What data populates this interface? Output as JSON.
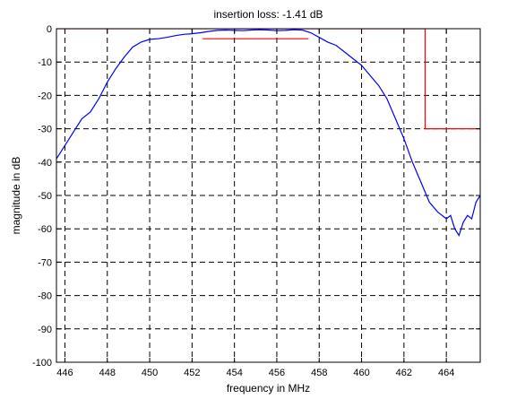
{
  "chart_data": {
    "type": "line",
    "title": "insertion loss: -1.41  dB",
    "xlabel": "frequency in MHz",
    "ylabel": "magnitude in dB",
    "xlim": [
      445.6,
      465.6
    ],
    "ylim": [
      -100,
      0
    ],
    "xticks": [
      446,
      448,
      450,
      452,
      454,
      456,
      458,
      460,
      462,
      464
    ],
    "yticks": [
      0,
      -10,
      -20,
      -30,
      -40,
      -50,
      -60,
      -70,
      -80,
      -90,
      -100
    ],
    "grid": true,
    "colors": {
      "response": "#0000ff",
      "mask": "#ff0000"
    },
    "series": [
      {
        "x": [
          445.6,
          446.0,
          446.4,
          446.8,
          447.2,
          447.6,
          448.0,
          448.4,
          448.8,
          449.2,
          449.6,
          450.0,
          450.4,
          450.8,
          451.2,
          451.6,
          452.0,
          452.4,
          452.8,
          453.2,
          453.6,
          454.0,
          454.4,
          454.8,
          455.2,
          455.6,
          456.0,
          456.4,
          456.8,
          457.2,
          457.6,
          458.0,
          458.4,
          458.8,
          459.2,
          459.6,
          460.0,
          460.4,
          460.8,
          461.2,
          461.6,
          462.0,
          462.4,
          462.8,
          463.2,
          463.6,
          464.0,
          464.2,
          464.4,
          464.6,
          464.8,
          465.0,
          465.2,
          465.4,
          465.6
        ],
        "y": [
          -39,
          -35,
          -31,
          -27,
          -25,
          -21,
          -16,
          -12,
          -8.5,
          -5.5,
          -4,
          -3.2,
          -3,
          -2.6,
          -2.1,
          -1.7,
          -1.5,
          -1.2,
          -0.8,
          -0.5,
          -0.4,
          -0.5,
          -0.6,
          -0.4,
          -0.3,
          -0.4,
          -0.6,
          -0.5,
          -0.3,
          -0.4,
          -1.2,
          -2.6,
          -4,
          -5,
          -7,
          -9,
          -11,
          -14,
          -17,
          -21,
          -27,
          -33,
          -40,
          -46,
          -52,
          -55,
          -57,
          -56,
          -60,
          -62,
          -58,
          -56,
          -57,
          -52,
          -50
        ]
      },
      {
        "x": [
          452.5,
          457.5
        ],
        "y": [
          -3,
          -3
        ]
      },
      {
        "x": [
          445.6,
          463.0,
          463.0,
          465.6
        ],
        "y": [
          0,
          0,
          -30,
          -30
        ]
      }
    ]
  }
}
